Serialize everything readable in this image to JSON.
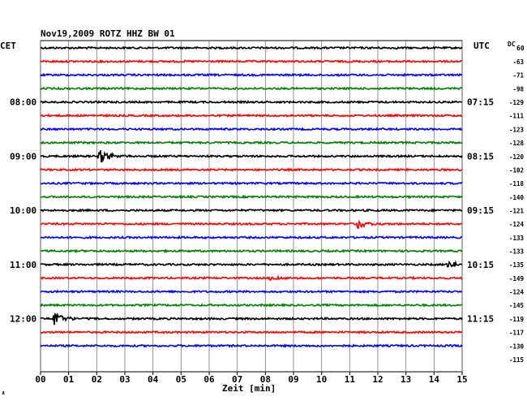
{
  "chart_data": {
    "type": "line",
    "title": "Nov19,2009   ROTZ HHZ BW 01",
    "left_tz": "CET",
    "right_tz": "UTC",
    "dc_label": "DC",
    "dc_label_sub": "60",
    "xlabel": "Zeit [min]",
    "xlim": [
      0,
      15
    ],
    "x_ticks": [
      "00",
      "01",
      "02",
      "03",
      "04",
      "05",
      "06",
      "07",
      "08",
      "09",
      "10",
      "11",
      "12",
      "13",
      "14",
      "15"
    ],
    "grid": true,
    "left_hour_labels": [
      {
        "row": 4,
        "label": "08:00"
      },
      {
        "row": 8,
        "label": "09:00"
      },
      {
        "row": 12,
        "label": "10:00"
      },
      {
        "row": 16,
        "label": "11:00"
      },
      {
        "row": 20,
        "label": "12:00"
      }
    ],
    "right_hour_labels": [
      {
        "row": 4,
        "label": "07:15"
      },
      {
        "row": 8,
        "label": "08:15"
      },
      {
        "row": 12,
        "label": "09:15"
      },
      {
        "row": 16,
        "label": "10:15"
      },
      {
        "row": 20,
        "label": "11:15"
      }
    ],
    "trace_colors": [
      "#000000",
      "#ff0000",
      "#0000ff",
      "#008000"
    ],
    "dc_offsets": [
      "-63",
      "-71",
      "-98",
      "-129",
      "-111",
      "-123",
      "-128",
      "-120",
      "-102",
      "-118",
      "-140",
      "-121",
      "-124",
      "-133",
      "-133",
      "-135",
      "-149",
      "-124",
      "-145",
      "-119",
      "-117",
      "-130",
      "-115"
    ],
    "events": [
      {
        "row": 8,
        "minute": 2.1,
        "amplitude": 9
      },
      {
        "row": 13,
        "minute": 11.3,
        "amplitude": 7
      },
      {
        "row": 16,
        "minute": 14.5,
        "amplitude": 8
      },
      {
        "row": 17,
        "minute": 8.2,
        "amplitude": 5
      },
      {
        "row": 20,
        "minute": 0.5,
        "amplitude": 11
      }
    ]
  },
  "corner_mark": "∧"
}
